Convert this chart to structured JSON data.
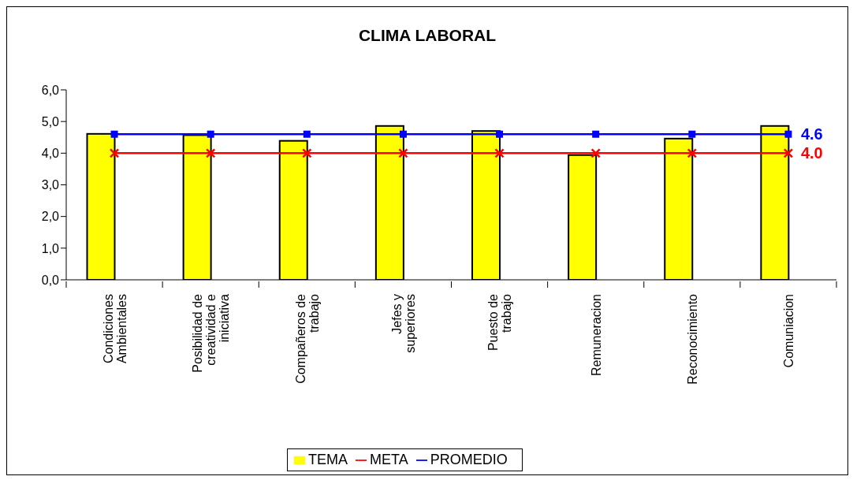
{
  "chart_data": {
    "type": "bar",
    "title": "CLIMA LABORAL",
    "categories": [
      "Condiciones Ambientales",
      "Posibilidad de creatividad e iniciativa",
      "Compañeros de trabajo",
      "Jefes y superiores",
      "Puesto de trabajo",
      "Remuneracion",
      "Reconocimiento",
      "Comuniacion"
    ],
    "series": [
      {
        "name": "TEMA",
        "color": "#ffff00",
        "values": [
          4.61,
          4.57,
          4.39,
          4.86,
          4.7,
          3.94,
          4.46,
          4.86
        ]
      },
      {
        "name": "META",
        "type": "line",
        "color": "#ff0000",
        "marker": "cross",
        "values": [
          4.0,
          4.0,
          4.0,
          4.0,
          4.0,
          4.0,
          4.0,
          4.0
        ],
        "value_labels": [
          null,
          null,
          null,
          null,
          null,
          null,
          null,
          "4.0"
        ]
      },
      {
        "name": "PROMEDIO",
        "type": "line",
        "color": "#0000ff",
        "marker": "square",
        "values": [
          4.6,
          4.6,
          4.6,
          4.6,
          4.6,
          4.6,
          4.6,
          4.6
        ],
        "value_labels": [
          null,
          null,
          null,
          null,
          null,
          null,
          null,
          "4.6"
        ]
      }
    ],
    "ylim": [
      0,
      6
    ],
    "yticks": [
      {
        "value": 0,
        "label": "0,0"
      },
      {
        "value": 1,
        "label": "1,0"
      },
      {
        "value": 2,
        "label": "2,0"
      },
      {
        "value": 3,
        "label": "3,0"
      },
      {
        "value": 4,
        "label": "4,0"
      },
      {
        "value": 5,
        "label": "5,0"
      },
      {
        "value": 6,
        "label": "6,0"
      }
    ],
    "grid": false,
    "legend": "bottom"
  }
}
